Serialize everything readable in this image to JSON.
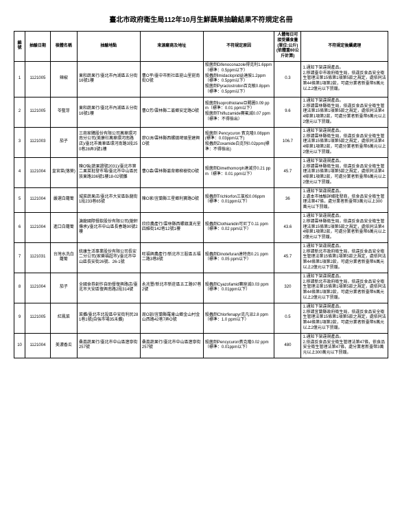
{
  "title": "臺北市政府衛生局112年10月生鮮蔬果抽驗結果不符規定名冊",
  "headers": {
    "no": "編號",
    "date": "抽驗日期",
    "name": "檢體名稱",
    "loc": "抽驗地點",
    "src": "來源廠商及地址",
    "reason": "不符規定原因",
    "limit": "人體每日可接受攝食量(單位:公斤)(依體重60公斤計算)",
    "action": "不符規定後續處理"
  },
  "rows": [
    {
      "no": "1",
      "date": "1121005",
      "name": "辣椒",
      "loc": "東和蔬果行/臺北市內湖區五分街16號1樓",
      "src": "曹O平/臺中市新社區崑山里崑南街O號",
      "reason": "殺菌劑Difenoconazole得克利1.6ppm（標準：0.5ppm以下）\n殺蟲劑Imidacloprid益達胺1.2ppm（標準：0.5ppm以下）\n殺菌劑Pyraclostrobin百克敏0.8ppm（標準：0.5ppm以下）",
      "limit": "0.3",
      "action": "1.通知下架違規產品。\n2.移請臺中市政府衛生局，依違反食品安全衛生管理法第15條第1項第5款之規定，處依同法第44條第1項第2款，可處分業者新臺幣6萬元以上2億元以下罰鍰。"
    },
    {
      "no": "2",
      "date": "1121005",
      "name": "苓藍芽",
      "loc": "東和蔬果行/臺北市內湖區五分街16號1樓",
      "src": "曹O芳/雲林縣二崙鄉安定路O號",
      "reason": "殺菌劑Isoprothiolane亞賜圃0.09 ppm（標準：0.01 ppm以下）\n殺菌劑Thifluzamide賽氟滅0.07 ppm（標準：不得檢出）",
      "limit": "9.6",
      "action": "1.通知下架違規產品。\n2.移請雲林縣衛生局，依違反食品安全衛生管理法第15條第1項第5款之規定，處依同法第44條第1項第2款，可處分業者新臺幣6萬元以上2億元以下罰鍰。"
    },
    {
      "no": "3",
      "date": "1121003",
      "name": "茄子",
      "loc": "三商家購股份有限公司萬華環河南分公司(美廉社萬華環河南路店)/臺北市萬華區環河南路3段250巷28弄3號1樓",
      "src": "廖O洲/雲林縣西螺鎮埤頭里建興O號",
      "reason": "殺菌劑 Pencycuron 賓克隆0.08ppm(標準：0.03ppm以下)\n殺蟲劑Zoxamide白克列0.02ppm(標準：不得檢出)",
      "limit": "106.7",
      "action": "1.通知下架違規產品。\n2.移請雲林縣衛生局，依違反食品安全衛生管理法第15條第1項第5款之規定，處依同法第44條第1項第2款，可處分業者新臺幣6萬元以上2億元以下罰鍰。"
    },
    {
      "no": "4",
      "date": "1121004",
      "name": "皇宮菜(落葵)",
      "loc": "陳O強(蔬果證號2031)/臺北市第二果菜批發市場/臺北市中山區民族東路336號1樓18-02號攤",
      "src": "曹O森/雲林縣崙背鄉柳樹街O號",
      "reason": "殺菌劑Dimethomorph達滅芬0.21 ppm（標準：0.01 ppm以下）",
      "limit": "45.7",
      "action": "1.通知下架違規產品。\n2.移請雲林縣衛生局，依違反食品安全衛生管理法第15條第1項第5款之規定，處依同法第44條第1項第2款，可處分業者新臺幣6萬元以上2億元以下罰鍰。"
    },
    {
      "no": "5",
      "date": "1121004",
      "name": "嚴選白蘿蔔",
      "loc": "城菜蔬果店/臺北市大安區臥龍街1段233巷65號",
      "src": "陳O家/宜蘭縣三星鄉利寶路O號",
      "reason": "殺蟲劑Trichlorfon三氯松0.06ppm（標準：0.01ppm以下）",
      "limit": "36",
      "action": "1.通知下架違規產品。\n2.處本市抽驗詳細批發商，依食品安全衛生管理法第47條，處分業者新臺幣3萬元以上300萬元以下罰鍰。"
    },
    {
      "no": "6",
      "date": "1121004",
      "name": "進口白蘿蔔",
      "loc": "溏龍國際餐飲股份有限公司(龍軒傳承)/臺北市中山區長春路90號2樓",
      "src": "欣欣農產行/雲林縣西螺鎮漢光里四維街142巷12號1樓",
      "reason": "殺蟲劑Clothianidin可尼丁0.11 ppm（標準：0.02 ppm以下）",
      "limit": "43.6",
      "action": "1.通知下架違規產品。\n2.移請雲林縣衛生局，依違反食品安全衛生管理法第15條第1項第5款之規定，處依同法第44條第1項第2款，可處分業者新臺幣6萬元以上2億元以下罰鍰。"
    },
    {
      "no": "7",
      "date": "1121031",
      "name": "台灣水洗白蘿蔔",
      "loc": "統康生活事業股份有限公司長安二分公司(家樂福超市)/臺北市中山區長安街26號、26-1號",
      "src": "旺福興農產行/新北市三股區五福二路3巷8號",
      "reason": "殺蟲劑Dinotefuran達特南0.21 ppm（標準：0.05 ppm以下）",
      "limit": "45.7",
      "action": "1.通知下架違規產品。\n2.移請新北市政府衛生局，依違反食品安全衛生管理法第15條第1項第5款之規定，處依同法第44條第1項第2款，可處分業者新臺幣6萬元以上2億元以下罰鍰。"
    },
    {
      "no": "8",
      "date": "1121004",
      "name": "茄子",
      "loc": "全國食券創作自助餐復興路店/臺北市大安區復興南路2段314號",
      "src": "永兆豐/新北市新莊區五工路97巷2號",
      "reason": "殺蟲劑Cyazofamid賽座滅0.03 ppm（標準：0.01ppm以下）",
      "limit": "320",
      "action": "1.通知下架違規產品。\n2.移請新北市政府衛生局，依違反食品安全衛生管理法第15條第1項第5款之規定，處依同法第44條第1項第2款，可處分業者新臺幣6萬元以上2億元以下罰鍰。"
    },
    {
      "no": "9",
      "date": "1121005",
      "name": "紅鳳菜",
      "loc": "菜攤/臺北市北投區中安街利民281巷1號(自強市場35未攤)",
      "src": "周O訓/宜蘭縣羅東山鄉金山村金山西路42巷7弄O號",
      "reason": "殺蟲劑Chlorfenapyr克凡派2.8 ppm（標準：1.0 ppm以下）",
      "limit": "0.5",
      "action": "1.通知下架違規產品。\n2.移請宜蘭縣政府衛生局，依違反食品安全衛生管理法第15條第1項第5款之規定，處依同法第44條第1項第2款，可處分業者新臺幣6萬元以上2億元以下罰鍰。"
    },
    {
      "no": "10",
      "date": "1121004",
      "name": "美濃香瓜",
      "loc": "桑荔蔬果行/臺北市中山區遼寧街257號",
      "src": "桑荔蔬果行/臺北市中山區遼寧街257號",
      "reason": "殺菌劑Pencycuron賓克隆0.02 ppm（標準：0.01ppm以下）",
      "limit": "480",
      "action": "1.通知下架違規產品。\n2.依違反食品安全衛生管理法第47條，依食品安全衛生管理法第47條，處分業者新臺幣3萬元以上300萬元以下罰鍰。"
    }
  ]
}
